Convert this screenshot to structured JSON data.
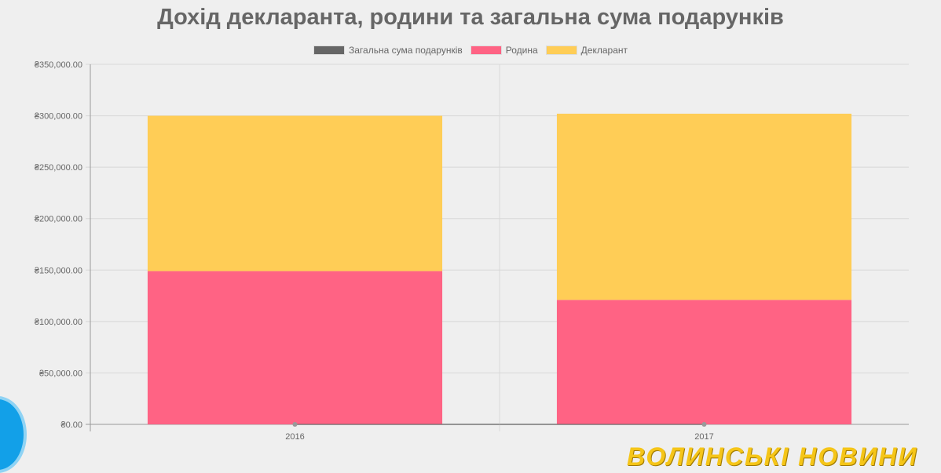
{
  "chart_data": {
    "type": "bar",
    "stacked": true,
    "title": "Дохід декларанта, родини та загальна сума подарунків",
    "categories": [
      "2016",
      "2017"
    ],
    "series": [
      {
        "name": "Загальна сума подарунків",
        "kind": "line",
        "color": "#666666",
        "values": [
          0,
          0
        ]
      },
      {
        "name": "Родина",
        "color": "#ff6384",
        "values": [
          149000,
          121000
        ]
      },
      {
        "name": "Декларант",
        "color": "#ffcd56",
        "values": [
          151000,
          181000
        ]
      }
    ],
    "ylim": [
      0,
      350000
    ],
    "yticks": [
      "₴0.00",
      "₴50,000.00",
      "₴100,000.00",
      "₴150,000.00",
      "₴200,000.00",
      "₴250,000.00",
      "₴300,000.00",
      "₴350,000.00"
    ],
    "grid": true,
    "legend": "top"
  },
  "watermark": "ВОЛИНСЬКІ НОВИНИ"
}
